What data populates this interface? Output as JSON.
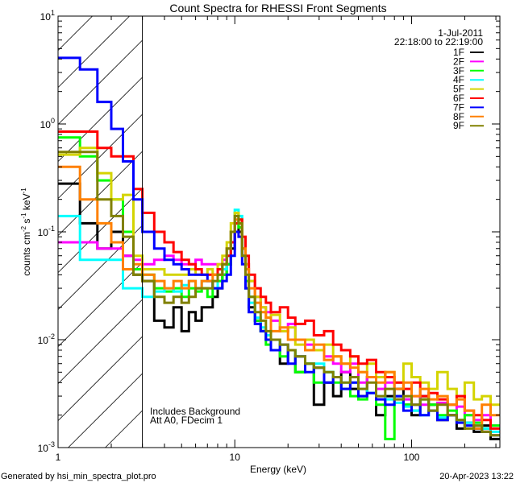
{
  "chart_data": {
    "type": "line",
    "title": "Count Spectra for RHESSI Front Segments",
    "xlabel": "Energy (keV)",
    "ylabel": "counts cm",
    "ylabel_parts": {
      "base": "counts cm",
      "exp1": "-2",
      "mid": " s",
      "exp2": "-1",
      "tail": " keV",
      "exp3": "-1"
    },
    "xscale": "log",
    "yscale": "log",
    "xlim": [
      1,
      316
    ],
    "ylim": [
      0.001,
      10
    ],
    "x_tick_labels": [
      {
        "value": 1,
        "label": "1"
      },
      {
        "value": 10,
        "label": "10"
      },
      {
        "value": 100,
        "label": "100"
      }
    ],
    "y_tick_labels": [
      {
        "value": 10,
        "base": "10",
        "exp": "1"
      },
      {
        "value": 1,
        "base": "10",
        "exp": "0"
      },
      {
        "value": 0.1,
        "base": "10",
        "exp": "-1"
      },
      {
        "value": 0.01,
        "base": "10",
        "exp": "-2"
      },
      {
        "value": 0.001,
        "base": "10",
        "exp": "-3"
      }
    ],
    "shaded_region": [
      1,
      3
    ],
    "legend_placement": "top-right",
    "legend_header": [
      "1-Jul-2011",
      "22:18:00 to 22:19:00"
    ],
    "annotations": [
      "Includes Background",
      "Att A0, FDecim 1"
    ],
    "bin_edges": [
      1,
      1.33,
      1.67,
      2,
      2.33,
      2.67,
      3,
      3.5,
      4,
      4.5,
      5,
      5.5,
      6,
      6.5,
      7,
      7.5,
      8,
      8.5,
      9,
      9.5,
      10,
      10.5,
      11,
      11.5,
      12,
      13,
      14,
      15,
      16,
      18,
      20,
      22,
      25,
      28,
      32,
      36,
      40,
      45,
      50,
      56,
      63,
      71,
      80,
      90,
      100,
      112,
      125,
      140,
      160,
      180,
      200,
      225,
      250,
      280,
      316
    ],
    "series": [
      {
        "name": "1F",
        "color": "#000000",
        "values": [
          0.28,
          0.12,
          0.07,
          0.1,
          0.06,
          0.04,
          0.035,
          0.015,
          0.013,
          0.02,
          0.012,
          0.018,
          0.015,
          0.02,
          0.02,
          0.025,
          0.03,
          0.04,
          0.05,
          0.07,
          0.12,
          0.1,
          0.06,
          0.03,
          0.02,
          0.015,
          0.012,
          0.01,
          0.008,
          0.006,
          0.008,
          0.005,
          0.006,
          0.0025,
          0.004,
          0.003,
          0.005,
          0.0035,
          0.003,
          0.0045,
          0.002,
          0.003,
          0.0035,
          0.0025,
          0.002,
          0.003,
          0.0025,
          0.0018,
          0.002,
          0.0015,
          0.0017,
          0.0014,
          0.0016,
          0.0012
        ]
      },
      {
        "name": "2F",
        "color": "#ff00ff",
        "values": [
          0.08,
          0.08,
          0.07,
          0.07,
          0.06,
          0.055,
          0.05,
          0.055,
          0.06,
          0.055,
          0.05,
          0.05,
          0.055,
          0.05,
          0.05,
          0.05,
          0.05,
          0.055,
          0.06,
          0.08,
          0.14,
          0.12,
          0.07,
          0.05,
          0.035,
          0.025,
          0.02,
          0.018,
          0.015,
          0.012,
          0.014,
          0.01,
          0.009,
          0.008,
          0.007,
          0.006,
          0.005,
          0.006,
          0.004,
          0.0045,
          0.0035,
          0.004,
          0.003,
          0.0028,
          0.003,
          0.0025,
          0.0022,
          0.0026,
          0.002,
          0.0024,
          0.002,
          0.0018,
          0.002,
          0.0016
        ]
      },
      {
        "name": "3F",
        "color": "#00ff00",
        "values": [
          0.75,
          0.5,
          0.3,
          0.2,
          0.1,
          0.045,
          0.04,
          0.03,
          0.028,
          0.03,
          0.025,
          0.03,
          0.028,
          0.03,
          0.025,
          0.03,
          0.035,
          0.04,
          0.05,
          0.08,
          0.15,
          0.11,
          0.06,
          0.035,
          0.025,
          0.015,
          0.012,
          0.009,
          0.01,
          0.007,
          0.008,
          0.005,
          0.006,
          0.004,
          0.005,
          0.004,
          0.0035,
          0.003,
          0.0028,
          0.0032,
          0.0025,
          0.0012,
          0.003,
          0.0025,
          0.0022,
          0.0028,
          0.0025,
          0.002,
          0.0022,
          0.0018,
          0.002,
          0.0017,
          0.0015,
          0.0016
        ]
      },
      {
        "name": "4F",
        "color": "#00ffff",
        "values": [
          0.14,
          0.055,
          0.055,
          0.055,
          0.03,
          0.03,
          0.025,
          0.028,
          0.03,
          0.028,
          0.032,
          0.035,
          0.03,
          0.035,
          0.035,
          0.03,
          0.04,
          0.045,
          0.06,
          0.1,
          0.16,
          0.14,
          0.06,
          0.03,
          0.022,
          0.016,
          0.013,
          0.011,
          0.01,
          0.009,
          0.008,
          0.007,
          0.006,
          0.006,
          0.005,
          0.0045,
          0.004,
          0.004,
          0.0035,
          0.0032,
          0.003,
          0.0028,
          0.0026,
          0.0024,
          0.0022,
          0.002,
          0.0022,
          0.0019,
          0.002,
          0.0018,
          0.0017,
          0.0016,
          0.0015,
          0.0014
        ]
      },
      {
        "name": "5F",
        "color": "#d4d400",
        "values": [
          0.52,
          0.6,
          0.35,
          0.2,
          0.22,
          0.06,
          0.045,
          0.045,
          0.04,
          0.04,
          0.04,
          0.045,
          0.04,
          0.04,
          0.045,
          0.04,
          0.05,
          0.06,
          0.08,
          0.12,
          0.15,
          0.13,
          0.07,
          0.05,
          0.035,
          0.025,
          0.02,
          0.016,
          0.017,
          0.012,
          0.013,
          0.009,
          0.01,
          0.008,
          0.009,
          0.007,
          0.006,
          0.007,
          0.005,
          0.006,
          0.0045,
          0.005,
          0.004,
          0.006,
          0.0045,
          0.004,
          0.0035,
          0.005,
          0.0035,
          0.003,
          0.004,
          0.0028,
          0.003,
          0.0025
        ]
      },
      {
        "name": "6F",
        "color": "#ff0000",
        "values": [
          0.85,
          0.85,
          0.6,
          0.5,
          0.5,
          0.25,
          0.15,
          0.1,
          0.08,
          0.065,
          0.055,
          0.05,
          0.045,
          0.04,
          0.04,
          0.04,
          0.045,
          0.05,
          0.06,
          0.08,
          0.12,
          0.13,
          0.09,
          0.06,
          0.04,
          0.03,
          0.025,
          0.022,
          0.018,
          0.02,
          0.016,
          0.014,
          0.015,
          0.011,
          0.012,
          0.009,
          0.008,
          0.007,
          0.006,
          0.0065,
          0.005,
          0.0045,
          0.004,
          0.0035,
          0.004,
          0.003,
          0.0032,
          0.0028,
          0.0025,
          0.003,
          0.0022,
          0.002,
          0.0018,
          0.0015
        ]
      },
      {
        "name": "7F",
        "color": "#0000ff",
        "values": [
          4.1,
          3.2,
          1.6,
          0.9,
          0.45,
          0.2,
          0.1,
          0.07,
          0.055,
          0.05,
          0.045,
          0.04,
          0.04,
          0.04,
          0.035,
          0.03,
          0.03,
          0.035,
          0.04,
          0.06,
          0.1,
          0.09,
          0.05,
          0.03,
          0.018,
          0.014,
          0.012,
          0.01,
          0.008,
          0.009,
          0.006,
          0.007,
          0.005,
          0.0055,
          0.004,
          0.0045,
          0.0035,
          0.004,
          0.003,
          0.0032,
          0.0028,
          0.0025,
          0.003,
          0.0022,
          0.0025,
          0.002,
          0.0022,
          0.0018,
          0.002,
          0.0017,
          0.0016,
          0.0015,
          0.0014,
          0.0013
        ]
      },
      {
        "name": "8F",
        "color": "#ff8000",
        "values": [
          0.4,
          0.2,
          0.12,
          0.08,
          0.045,
          0.05,
          0.04,
          0.035,
          0.03,
          0.035,
          0.03,
          0.035,
          0.03,
          0.035,
          0.035,
          0.04,
          0.04,
          0.05,
          0.07,
          0.1,
          0.13,
          0.12,
          0.07,
          0.045,
          0.03,
          0.022,
          0.018,
          0.016,
          0.012,
          0.013,
          0.01,
          0.01,
          0.008,
          0.009,
          0.0065,
          0.007,
          0.006,
          0.0055,
          0.005,
          0.0045,
          0.004,
          0.005,
          0.0035,
          0.004,
          0.003,
          0.0035,
          0.0028,
          0.003,
          0.0025,
          0.0028,
          0.0022,
          0.0015,
          0.0025,
          0.002
        ]
      },
      {
        "name": "9F",
        "color": "#808000",
        "values": [
          0.55,
          0.55,
          0.2,
          0.14,
          0.09,
          0.04,
          0.035,
          0.025,
          0.022,
          0.025,
          0.022,
          0.025,
          0.03,
          0.03,
          0.03,
          0.035,
          0.04,
          0.05,
          0.07,
          0.1,
          0.14,
          0.12,
          0.06,
          0.04,
          0.025,
          0.018,
          0.015,
          0.012,
          0.01,
          0.009,
          0.008,
          0.007,
          0.006,
          0.0055,
          0.005,
          0.0045,
          0.004,
          0.0045,
          0.0035,
          0.004,
          0.003,
          0.0035,
          0.0028,
          0.003,
          0.0025,
          0.0028,
          0.0022,
          0.0025,
          0.002,
          0.0018,
          0.0015,
          0.0016,
          0.0014,
          0.0013
        ]
      }
    ]
  },
  "footer": {
    "generated_by": "Generated by hsi_min_spectra_plot.pro",
    "timestamp": "20-Apr-2023 13:22"
  }
}
